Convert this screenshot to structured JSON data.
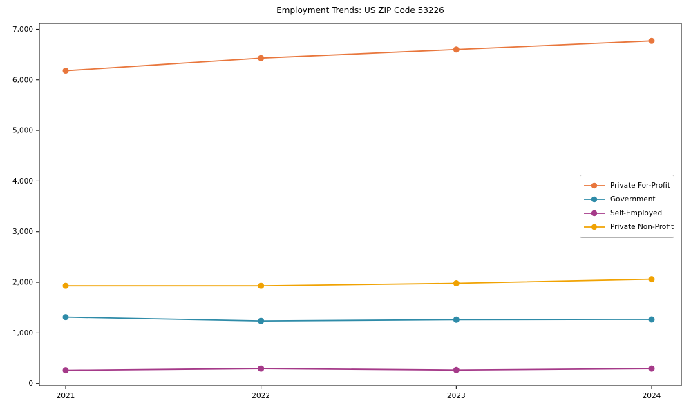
{
  "page": {
    "background": "#ffffff",
    "text_color": "#000000",
    "axis_color": "#000000",
    "legend_border_color": "#b3b3b3"
  },
  "chart_data": {
    "type": "line",
    "title": "Employment Trends: US ZIP Code 53226",
    "xlabel": "",
    "ylabel": "",
    "x": [
      "2021",
      "2022",
      "2023",
      "2024"
    ],
    "series": [
      {
        "name": "Private For-Profit",
        "color": "#E8763C",
        "values": [
          6180,
          6430,
          6600,
          6770
        ]
      },
      {
        "name": "Government",
        "color": "#2E8BA8",
        "values": [
          1310,
          1235,
          1260,
          1265
        ]
      },
      {
        "name": "Self-Employed",
        "color": "#A53A89",
        "values": [
          260,
          295,
          265,
          295
        ]
      },
      {
        "name": "Private Non-Profit",
        "color": "#F0A202",
        "values": [
          1930,
          1930,
          1980,
          2060
        ]
      }
    ],
    "ylim": [
      -45,
      7115
    ],
    "yticks": [
      0,
      1000,
      2000,
      3000,
      4000,
      5000,
      6000,
      7000
    ],
    "ytick_labels": [
      "0",
      "1,000",
      "2,000",
      "3,000",
      "4,000",
      "5,000",
      "6,000",
      "7,000"
    ],
    "grid": false,
    "legend_position": "right-center",
    "marker": "circle"
  }
}
